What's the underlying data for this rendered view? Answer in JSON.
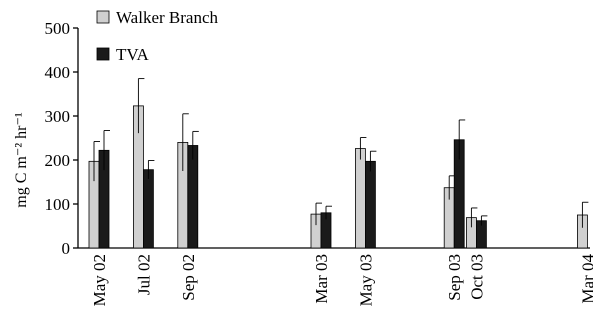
{
  "chart_data": {
    "type": "bar",
    "categories": [
      "May 02",
      "Jul 02",
      "Sep 02",
      "Mar 03",
      "May 03",
      "Sep 03",
      "Oct 03",
      "Mar 04"
    ],
    "category_months": [
      0,
      2,
      4,
      10,
      12,
      16,
      17,
      22
    ],
    "series": [
      {
        "name": "Walker Branch",
        "color": "#d0d0d0",
        "values": [
          197,
          323,
          240,
          77,
          226,
          137,
          69,
          75
        ],
        "errors": [
          45,
          62,
          65,
          25,
          25,
          27,
          22,
          29
        ]
      },
      {
        "name": "TVA",
        "color": "#1a1a1a",
        "values": [
          222,
          178,
          233,
          80,
          197,
          246,
          62,
          null
        ],
        "errors": [
          45,
          21,
          32,
          15,
          23,
          45,
          11,
          null
        ]
      }
    ],
    "ylabel": "mg C m⁻² hr⁻¹",
    "ylim": [
      0,
      500
    ],
    "yticks": [
      0,
      100,
      200,
      300,
      400,
      500
    ],
    "legend_position": "top-left",
    "grid": false
  }
}
